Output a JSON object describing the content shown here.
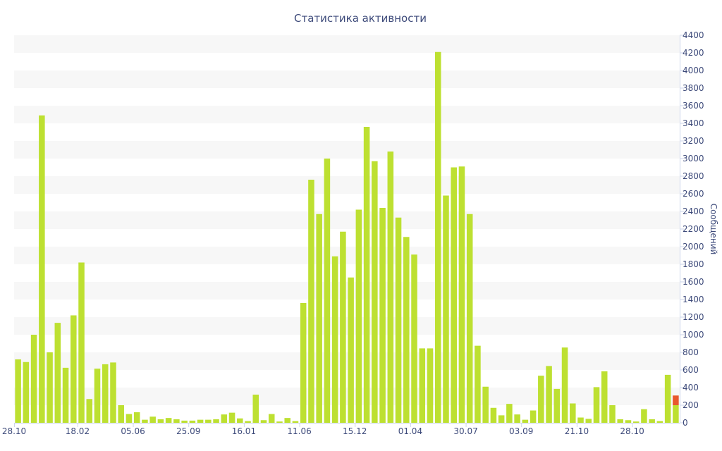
{
  "chart_data": {
    "type": "bar",
    "title": "Статистика активности",
    "xlabel": "",
    "ylabel": "Сообщений",
    "ylim": [
      0,
      4400
    ],
    "y_ticks": [
      0,
      200,
      400,
      600,
      800,
      1000,
      1200,
      1400,
      1600,
      1800,
      2000,
      2200,
      2400,
      2600,
      2800,
      3000,
      3200,
      3400,
      3600,
      3800,
      4000,
      4200,
      4400
    ],
    "y_axis_side": "right",
    "grid": "alternating horizontal bands",
    "legend": "none",
    "x_tick_labels": [
      {
        "label": "28.10",
        "index": 0
      },
      {
        "label": "18.02",
        "index": 8
      },
      {
        "label": "05.06",
        "index": 15
      },
      {
        "label": "25.09",
        "index": 22
      },
      {
        "label": "16.01",
        "index": 29
      },
      {
        "label": "11.06",
        "index": 36
      },
      {
        "label": "15.12",
        "index": 43
      },
      {
        "label": "01.04",
        "index": 50
      },
      {
        "label": "30.07",
        "index": 57
      },
      {
        "label": "03.09",
        "index": 64
      },
      {
        "label": "21.10",
        "index": 71
      },
      {
        "label": "28.10",
        "index": 78
      }
    ],
    "series": [
      {
        "color": "#bde031",
        "values": [
          720,
          690,
          1000,
          3490,
          800,
          1135,
          625,
          1220,
          1820,
          270,
          615,
          665,
          685,
          200,
          100,
          120,
          35,
          70,
          40,
          55,
          40,
          25,
          25,
          35,
          35,
          40,
          95,
          115,
          50,
          20,
          320,
          30,
          100,
          15,
          55,
          20,
          1360,
          2760,
          2370,
          3000,
          1890,
          2170,
          1650,
          2420,
          3360,
          2970,
          2440,
          3080,
          2330,
          2110,
          1910,
          845,
          845,
          4210,
          2580,
          2900,
          2910,
          2370,
          875,
          410,
          170,
          85,
          215,
          95,
          35,
          140,
          535,
          645,
          385,
          855,
          220,
          60,
          45,
          405,
          585,
          200,
          40,
          30,
          15,
          155,
          40,
          20,
          545,
          200
        ]
      },
      {
        "color": "#e8582e",
        "values": [
          0,
          0,
          0,
          0,
          0,
          0,
          0,
          0,
          0,
          0,
          0,
          0,
          0,
          0,
          0,
          0,
          0,
          0,
          0,
          0,
          0,
          0,
          0,
          0,
          0,
          0,
          0,
          0,
          0,
          0,
          0,
          0,
          0,
          0,
          0,
          0,
          0,
          0,
          0,
          0,
          0,
          0,
          0,
          0,
          0,
          0,
          0,
          0,
          0,
          0,
          0,
          0,
          0,
          0,
          0,
          0,
          0,
          0,
          0,
          0,
          0,
          0,
          0,
          0,
          0,
          0,
          0,
          0,
          0,
          0,
          0,
          0,
          0,
          0,
          0,
          0,
          0,
          0,
          0,
          0,
          0,
          0,
          0,
          110
        ]
      }
    ],
    "stacked": true,
    "colors": {
      "band": "#f7f7f7",
      "axis": "#ccd6eb",
      "text": "#3d4a7a"
    }
  }
}
